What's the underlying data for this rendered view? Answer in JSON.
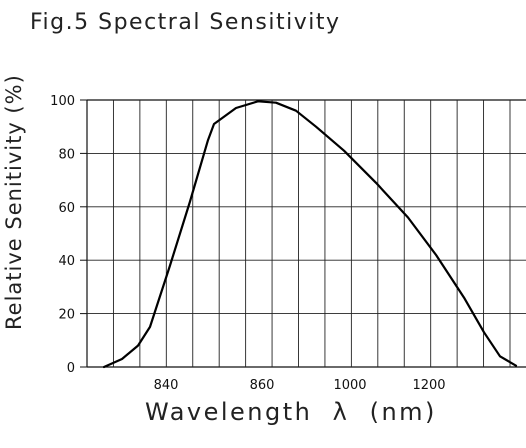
{
  "chart_data": {
    "type": "line",
    "title": "Fig.5  Spectral  Sensitivity",
    "xlabel": "Wavelength  λ  (nm)",
    "ylabel": "Relative Senitivity (%)",
    "x_tick_labels": [
      "840",
      "860",
      "1000",
      "1200"
    ],
    "y_ticks": [
      0,
      20,
      40,
      60,
      80,
      100
    ],
    "ylim": [
      0,
      100
    ],
    "grid": true,
    "note": "",
    "series": [
      {
        "values": [
          [
            0.0,
            0
          ],
          [
            0.045,
            3
          ],
          [
            0.085,
            8
          ],
          [
            0.115,
            15
          ],
          [
            0.165,
            38
          ],
          [
            0.215,
            62
          ],
          [
            0.26,
            85
          ],
          [
            0.275,
            91
          ],
          [
            0.33,
            97
          ],
          [
            0.385,
            99.5
          ],
          [
            0.43,
            99
          ],
          [
            0.48,
            96
          ],
          [
            0.53,
            90
          ],
          [
            0.6,
            81
          ],
          [
            0.68,
            69
          ],
          [
            0.76,
            56
          ],
          [
            0.83,
            42
          ],
          [
            0.9,
            26
          ],
          [
            0.95,
            13
          ],
          [
            0.99,
            4
          ],
          [
            1.03,
            0.5
          ]
        ]
      }
    ]
  }
}
